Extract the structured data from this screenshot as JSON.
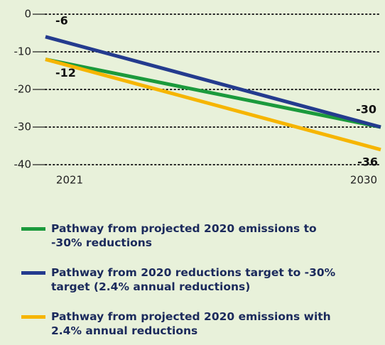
{
  "chart_data": {
    "type": "line",
    "x": [
      2021,
      2030
    ],
    "xticks": [
      2021,
      2030
    ],
    "ylim": [
      -40,
      0
    ],
    "yticks": [
      0,
      -10,
      -20,
      -30,
      -40
    ],
    "grid": true,
    "series": [
      {
        "name": "Pathway from projected 2020 emissions to -30% reductions",
        "color": "#1b9a3c",
        "values": [
          -12,
          -30
        ]
      },
      {
        "name": "Pathway from 2020 reductions target to -30% target (2.4% annual reductions)",
        "color": "#243b8e",
        "values": [
          -6,
          -30
        ]
      },
      {
        "name": "Pathway from projected 2020 emissions with 2.4% annual reductions",
        "color": "#f6b500",
        "values": [
          -12,
          -36
        ]
      }
    ]
  }
}
